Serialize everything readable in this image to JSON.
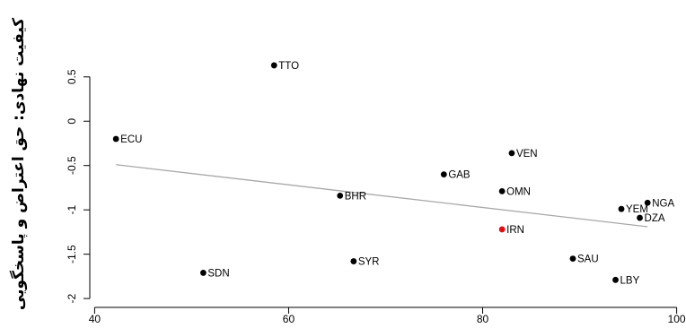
{
  "chart_data": {
    "type": "scatter",
    "title": "",
    "xlabel": "",
    "ylabel": "کیفیت نهادی: حق اعتراض و پاسخگویی",
    "xlim": [
      39.5,
      100.5
    ],
    "ylim": [
      -2.1,
      0.7
    ],
    "xticks": [
      40,
      60,
      80,
      100
    ],
    "yticks": [
      0.5,
      0,
      -0.5,
      -1,
      -1.5,
      -2
    ],
    "ytick_labels": [
      "0.5",
      "0",
      "-0.5",
      "-1",
      "-1.5",
      "-2"
    ],
    "points": [
      {
        "label": "TTO",
        "x": 58.5,
        "y": 0.63
      },
      {
        "label": "ECU",
        "x": 42.2,
        "y": -0.2
      },
      {
        "label": "VEN",
        "x": 83.0,
        "y": -0.36
      },
      {
        "label": "GAB",
        "x": 76.0,
        "y": -0.6
      },
      {
        "label": "OMN",
        "x": 82.0,
        "y": -0.79
      },
      {
        "label": "BHR",
        "x": 65.3,
        "y": -0.84
      },
      {
        "label": "NGA",
        "x": 97.0,
        "y": -0.92
      },
      {
        "label": "YEM",
        "x": 94.3,
        "y": -0.99
      },
      {
        "label": "DZA",
        "x": 96.2,
        "y": -1.09
      },
      {
        "label": "IRN",
        "x": 82.0,
        "y": -1.22,
        "highlight": true
      },
      {
        "label": "SAU",
        "x": 89.3,
        "y": -1.55
      },
      {
        "label": "SYR",
        "x": 66.7,
        "y": -1.58
      },
      {
        "label": "SDN",
        "x": 51.2,
        "y": -1.71
      },
      {
        "label": "LBY",
        "x": 93.7,
        "y": -1.79
      }
    ],
    "trendline": {
      "x": [
        42.2,
        97.0
      ],
      "y": [
        -0.49,
        -1.19
      ]
    },
    "colors": {
      "point": "#000000",
      "highlight": "#e01010",
      "trendline": "#a8a8a8",
      "axis": "#000000"
    }
  }
}
